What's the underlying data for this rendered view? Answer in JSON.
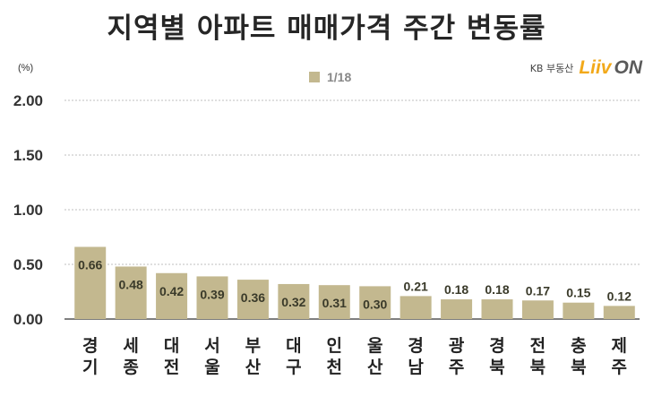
{
  "title": "지역별 아파트 매매가격 주간 변동률",
  "unit": "(%)",
  "brand": {
    "kb": "KB 부동산",
    "liiv": "Liiv",
    "on": "ON"
  },
  "colors": {
    "bar": "#c3b88f",
    "grid": "#bfbfbf",
    "axis": "#555555",
    "label": "#333333"
  },
  "chart_data": {
    "type": "bar",
    "categories": [
      "경기",
      "세종",
      "대전",
      "서울",
      "부산",
      "대구",
      "인천",
      "울산",
      "경남",
      "광주",
      "경북",
      "전북",
      "충북",
      "제주"
    ],
    "series": [
      {
        "name": "1/18",
        "values": [
          0.66,
          0.48,
          0.42,
          0.39,
          0.36,
          0.32,
          0.31,
          0.3,
          0.21,
          0.18,
          0.18,
          0.17,
          0.15,
          0.12
        ]
      }
    ],
    "ylim": [
      0,
      2.0
    ],
    "yticks": [
      "0.00",
      "0.50",
      "1.00",
      "1.50",
      "2.00"
    ],
    "grid": true,
    "legend": "top-center"
  }
}
